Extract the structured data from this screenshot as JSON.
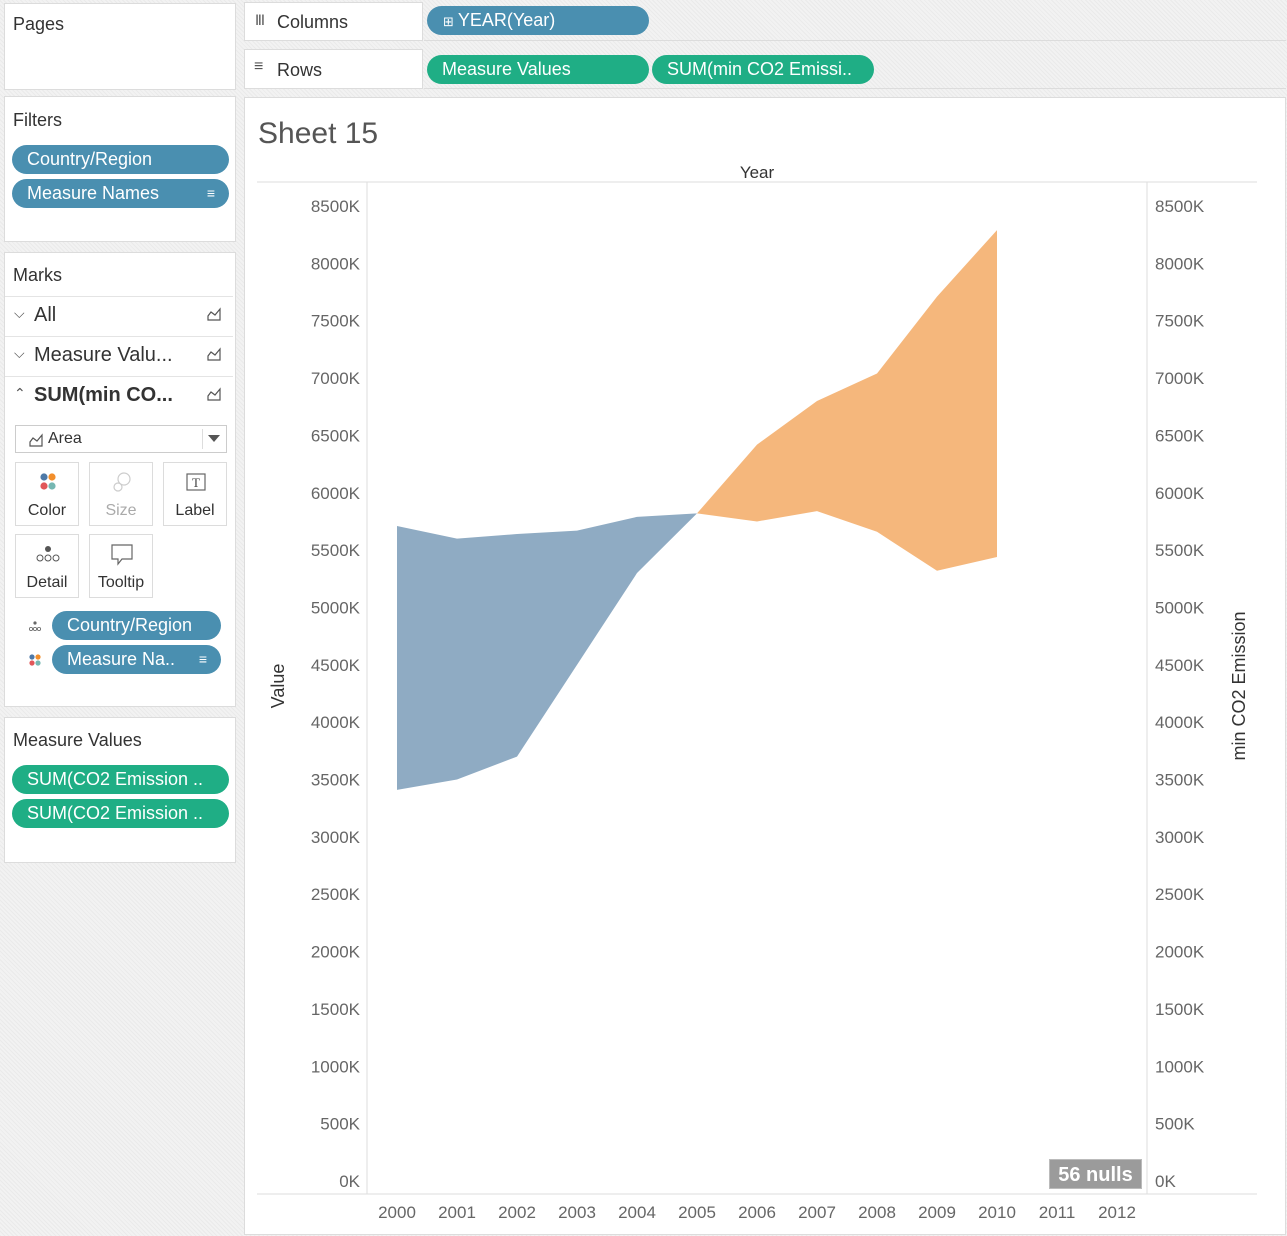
{
  "pages": {
    "title": "Pages"
  },
  "filters": {
    "title": "Filters",
    "items": [
      {
        "label": "Country/Region"
      },
      {
        "label": "Measure Names",
        "icon": "sort-icon"
      }
    ]
  },
  "marks": {
    "title": "Marks",
    "cards": [
      {
        "label": "All",
        "expanded": false
      },
      {
        "label": "Measure Valu...",
        "expanded": false
      },
      {
        "label": "SUM(min CO...",
        "expanded": true
      }
    ],
    "mark_type": "Area",
    "buttons": [
      {
        "label": "Color",
        "icon": "color-icon"
      },
      {
        "label": "Size",
        "icon": "size-icon"
      },
      {
        "label": "Label",
        "icon": "label-icon"
      },
      {
        "label": "Detail",
        "icon": "detail-icon"
      },
      {
        "label": "Tooltip",
        "icon": "tooltip-icon"
      }
    ],
    "fields": [
      {
        "label": "Country/Region",
        "icon": "detail-icon"
      },
      {
        "label": "Measure Na..",
        "icon": "color-icon"
      }
    ]
  },
  "measure_values": {
    "title": "Measure Values",
    "items": [
      {
        "label": "SUM(CO2 Emission .."
      },
      {
        "label": "SUM(CO2 Emission .."
      }
    ]
  },
  "shelves": {
    "columns": {
      "label": "Columns",
      "pills": [
        "YEAR(Year)"
      ]
    },
    "rows": {
      "label": "Rows",
      "pills": [
        "Measure Values",
        "SUM(min CO2 Emissi.."
      ]
    }
  },
  "sheet": {
    "title": "Sheet 15",
    "nulls_badge": "56 nulls"
  },
  "chart_data": {
    "type": "area",
    "title": "",
    "xlabel": "Year",
    "ylabel": "Value",
    "y2label": "min CO2 Emission",
    "x": [
      2000,
      2001,
      2002,
      2003,
      2004,
      2005,
      2006,
      2007,
      2008,
      2009,
      2010,
      2011,
      2012
    ],
    "ylim": [
      0,
      8500
    ],
    "y_ticks": [
      "0K",
      "500K",
      "1000K",
      "1500K",
      "2000K",
      "2500K",
      "3000K",
      "3500K",
      "4000K",
      "4500K",
      "5000K",
      "5500K",
      "6000K",
      "6500K",
      "7000K",
      "7500K",
      "8000K",
      "8500K"
    ],
    "y_tick_values": [
      0,
      500,
      1000,
      1500,
      2000,
      2500,
      3000,
      3500,
      4000,
      4500,
      5000,
      5500,
      6000,
      6500,
      7000,
      7500,
      8000,
      8500
    ],
    "series": [
      {
        "color": "#8fabc3",
        "x": [
          2000,
          2001,
          2002,
          2003,
          2004,
          2005
        ],
        "upper": [
          5710,
          5600,
          5640,
          5670,
          5790,
          5820
        ],
        "lower": [
          3410,
          3500,
          3700,
          4500,
          5300,
          5820
        ]
      },
      {
        "color": "#f5b77c",
        "x": [
          2005,
          2006,
          2007,
          2008,
          2009,
          2010
        ],
        "upper": [
          5820,
          6420,
          6800,
          7040,
          7710,
          8290
        ],
        "lower": [
          5820,
          5750,
          5840,
          5660,
          5320,
          5440
        ]
      }
    ],
    "grid": false,
    "legend": "none"
  }
}
